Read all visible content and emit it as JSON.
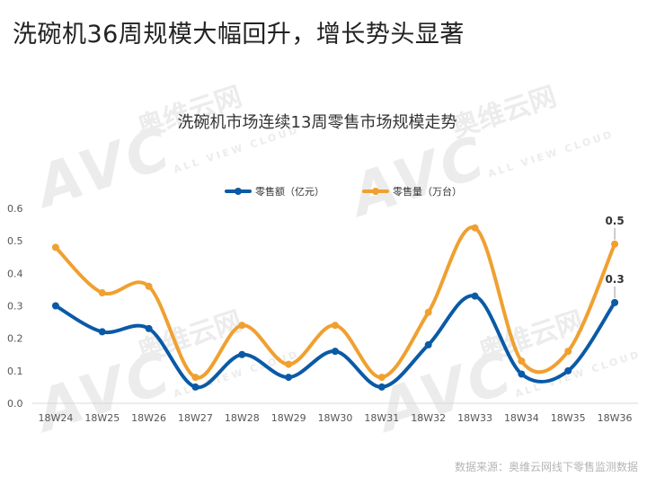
{
  "headline": "洗碗机36周规模大幅回升，增长势头显著",
  "source": "数据来源：奥维云网线下零售监测数据",
  "watermark": {
    "logo": "AVC",
    "cn": "奥维云网",
    "en": "ALL VIEW CLOUD"
  },
  "colors": {
    "series1": "#0a5aa6",
    "series2": "#f0a030",
    "axis": "#d9d9d9"
  },
  "chart_data": {
    "type": "line",
    "title": "洗碗机市场连续13周零售市场规模走势",
    "xlabel": "",
    "ylabel": "",
    "categories": [
      "18W24",
      "18W25",
      "18W26",
      "18W27",
      "18W28",
      "18W29",
      "18W30",
      "18W31",
      "18W32",
      "18W33",
      "18W34",
      "18W35",
      "18W36"
    ],
    "yticks": [
      "0.0",
      "0.1",
      "0.2",
      "0.3",
      "0.4",
      "0.5",
      "0.6"
    ],
    "ylim": [
      0,
      0.6
    ],
    "grid": false,
    "smooth": true,
    "legend": "top-center",
    "series": [
      {
        "name": "零售额（亿元）",
        "color": "#0a5aa6",
        "values": [
          0.3,
          0.22,
          0.23,
          0.05,
          0.15,
          0.08,
          0.16,
          0.05,
          0.18,
          0.33,
          0.09,
          0.1,
          0.31
        ]
      },
      {
        "name": "零售量（万台）",
        "color": "#f0a030",
        "values": [
          0.48,
          0.34,
          0.36,
          0.08,
          0.24,
          0.12,
          0.24,
          0.08,
          0.28,
          0.54,
          0.13,
          0.16,
          0.49
        ]
      }
    ],
    "annotations": [
      {
        "series": 1,
        "index": 12,
        "label": "0.5"
      },
      {
        "series": 0,
        "index": 12,
        "label": "0.3"
      }
    ]
  }
}
